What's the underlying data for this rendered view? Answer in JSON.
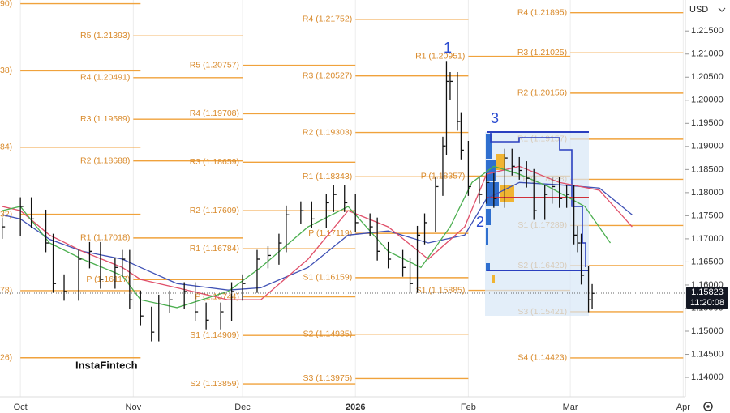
{
  "chart_data": {
    "type": "ohlc",
    "currency": "USD",
    "watermark": "InstaFintech",
    "last_price": 1.15823,
    "countdown": "11:20:08",
    "annotations": [
      "1",
      "2",
      "3"
    ],
    "grid": true,
    "xlim": [
      -5.6,
      182.6
    ],
    "xticks": [
      {
        "value": 0,
        "label": "Oct"
      },
      {
        "value": 31,
        "label": "Nov"
      },
      {
        "value": 61,
        "label": "Dec"
      },
      {
        "value": 92,
        "label": "2026"
      },
      {
        "value": 123,
        "label": "Feb"
      },
      {
        "value": 151,
        "label": "Mar"
      },
      {
        "value": 182,
        "label": "Apr"
      }
    ],
    "ylim": [
      1.1358,
      1.2217
    ],
    "yticks": [
      {
        "value": 1.215,
        "label": "1.21500"
      },
      {
        "value": 1.21,
        "label": "1.21000"
      },
      {
        "value": 1.205,
        "label": "1.20500"
      },
      {
        "value": 1.2,
        "label": "1.20000"
      },
      {
        "value": 1.195,
        "label": "1.19500"
      },
      {
        "value": 1.19,
        "label": "1.19000"
      },
      {
        "value": 1.185,
        "label": "1.18500"
      },
      {
        "value": 1.18,
        "label": "1.18000"
      },
      {
        "value": 1.175,
        "label": "1.17500"
      },
      {
        "value": 1.17,
        "label": "1.17000"
      },
      {
        "value": 1.165,
        "label": "1.16500"
      },
      {
        "value": 1.16,
        "label": "1.16000"
      },
      {
        "value": 1.155,
        "label": "1.15500"
      },
      {
        "value": 1.15,
        "label": "1.15000"
      },
      {
        "value": 1.145,
        "label": "1.14500"
      },
      {
        "value": 1.14,
        "label": "1.14000"
      }
    ],
    "x": [
      -5,
      0,
      3,
      7,
      9,
      12,
      16,
      19,
      22,
      26,
      28,
      30,
      33,
      36,
      38,
      41,
      45,
      48,
      51,
      55,
      58,
      61,
      65,
      68,
      71,
      73,
      77,
      80,
      84,
      86,
      89,
      92,
      96,
      98,
      101,
      105,
      107,
      109,
      111,
      114,
      116,
      117,
      118,
      120,
      121,
      123,
      126,
      128,
      130,
      133,
      135,
      137,
      139,
      141,
      144,
      146,
      148,
      150,
      152,
      153,
      154,
      156,
      157
    ],
    "high": [
      1.1746,
      1.179,
      1.179,
      1.1763,
      1.1711,
      1.1623,
      1.1676,
      1.1693,
      1.1693,
      1.1658,
      1.1676,
      1.1676,
      1.1588,
      1.1553,
      1.1579,
      1.1588,
      1.1606,
      1.1606,
      1.1562,
      1.1562,
      1.1606,
      1.1623,
      1.1676,
      1.1684,
      1.1711,
      1.1772,
      1.1781,
      1.1781,
      1.1798,
      1.1816,
      1.1816,
      1.1798,
      1.1755,
      1.1746,
      1.1693,
      1.1676,
      1.1658,
      1.1728,
      1.1755,
      1.1833,
      1.1921,
      1.2085,
      1.2061,
      1.2061,
      1.1974,
      1.1912,
      1.1833,
      1.1842,
      1.1842,
      1.1895,
      1.1895,
      1.1877,
      1.1868,
      1.1851,
      1.1816,
      1.1833,
      1.1833,
      1.1816,
      1.1816,
      1.1728,
      1.1711,
      1.1641,
      1.1602
    ],
    "low": [
      1.17,
      1.1706,
      1.1723,
      1.1671,
      1.1583,
      1.1566,
      1.1566,
      1.1636,
      1.1592,
      1.1592,
      1.1618,
      1.1548,
      1.1513,
      1.1478,
      1.1478,
      1.1539,
      1.1548,
      1.1522,
      1.1504,
      1.1504,
      1.1522,
      1.1566,
      1.1583,
      1.1636,
      1.1644,
      1.1671,
      1.1732,
      1.1723,
      1.1723,
      1.1758,
      1.1758,
      1.1715,
      1.1706,
      1.1653,
      1.1636,
      1.1618,
      1.1583,
      1.1583,
      1.1688,
      1.1715,
      1.1793,
      1.1881,
      1.2001,
      1.1934,
      1.1872,
      1.1793,
      1.1776,
      1.1776,
      1.1767,
      1.1767,
      1.1837,
      1.1828,
      1.1811,
      1.1741,
      1.1741,
      1.1776,
      1.1767,
      1.1767,
      1.1688,
      1.1671,
      1.1601,
      1.1541,
      1.1548
    ],
    "close": [
      1.1726,
      1.177,
      1.1743,
      1.1691,
      1.1603,
      1.1586,
      1.1656,
      1.1673,
      1.1612,
      1.1638,
      1.1656,
      1.1568,
      1.1533,
      1.1498,
      1.1559,
      1.1568,
      1.1586,
      1.1542,
      1.1524,
      1.1542,
      1.1586,
      1.1603,
      1.1656,
      1.1664,
      1.1691,
      1.1752,
      1.1761,
      1.1743,
      1.1778,
      1.1796,
      1.1778,
      1.1735,
      1.1726,
      1.1673,
      1.1656,
      1.1638,
      1.1603,
      1.1708,
      1.1735,
      1.1813,
      1.1901,
      1.2041,
      1.2041,
      1.1954,
      1.1892,
      1.1813,
      1.1796,
      1.1822,
      1.1787,
      1.1875,
      1.1857,
      1.1848,
      1.1831,
      1.1761,
      1.1796,
      1.1813,
      1.1787,
      1.1796,
      1.1708,
      1.1691,
      1.1621,
      1.1568,
      1.1582
    ],
    "series": [
      {
        "color": "#3f51b5",
        "x": [
          -5,
          0,
          8,
          17,
          28,
          33,
          43,
          57,
          66,
          79,
          90,
          101,
          112,
          122,
          128,
          137,
          148,
          159,
          168
        ],
        "values": [
          1.1752,
          1.1743,
          1.1699,
          1.1673,
          1.1656,
          1.1638,
          1.1603,
          1.1589,
          1.1594,
          1.1638,
          1.1708,
          1.1717,
          1.1691,
          1.1708,
          1.1787,
          1.1822,
          1.1817,
          1.181,
          1.1752
        ]
      },
      {
        "color": "#e0506a",
        "x": [
          -5,
          0,
          8,
          17,
          28,
          33,
          43,
          57,
          66,
          79,
          90,
          101,
          112,
          122,
          128,
          137,
          148,
          159,
          168
        ],
        "values": [
          1.177,
          1.1761,
          1.1708,
          1.1673,
          1.1638,
          1.1612,
          1.1594,
          1.1568,
          1.1568,
          1.1656,
          1.1761,
          1.1726,
          1.1656,
          1.1726,
          1.184,
          1.1857,
          1.1822,
          1.1805,
          1.1726
        ]
      },
      {
        "color": "#4caf50",
        "x": [
          -5,
          0,
          8,
          17,
          28,
          33,
          43,
          57,
          66,
          79,
          90,
          101,
          110,
          118,
          124,
          130,
          137,
          145,
          155,
          162
        ],
        "values": [
          1.1761,
          1.177,
          1.1691,
          1.1656,
          1.162,
          1.1568,
          1.1551,
          1.1586,
          1.1638,
          1.1726,
          1.177,
          1.1673,
          1.1638,
          1.1726,
          1.1822,
          1.1857,
          1.184,
          1.1813,
          1.177,
          1.1691
        ]
      }
    ],
    "pivots": [
      {
        "start": 0,
        "end": 33,
        "levels": [
          {
            "label": "90)",
            "value": 1.2209
          },
          {
            "label": "38)",
            "value": 1.20638
          },
          {
            "label": "84)",
            "value": 1.18984
          },
          {
            "label": "32)",
            "value": 1.17532
          },
          {
            "label": "78)",
            "value": 1.15878
          },
          {
            "label": "26)",
            "value": 1.14426
          }
        ]
      },
      {
        "start": 31,
        "end": 61,
        "levels": [
          {
            "label": "R5 (1.21393)",
            "value": 1.21393
          },
          {
            "label": "R4 (1.20491)",
            "value": 1.20491
          },
          {
            "label": "R3 (1.19589)",
            "value": 1.19589
          },
          {
            "label": "R2 (1.18688)",
            "value": 1.18688
          },
          {
            "label": "R1 (1.17018)",
            "value": 1.17018
          },
          {
            "label": "P (1.16117)",
            "value": 1.16117
          }
        ]
      },
      {
        "start": 61,
        "end": 92,
        "levels": [
          {
            "label": "R5 (1.20757)",
            "value": 1.20757
          },
          {
            "label": "R4 (1.19708)",
            "value": 1.19708
          },
          {
            "label": "R3 (1.18659)",
            "value": 1.18659
          },
          {
            "label": "R2 (1.17609)",
            "value": 1.17609
          },
          {
            "label": "R1 (1.16784)",
            "value": 1.16784
          },
          {
            "label": "P (1.15744)",
            "value": 1.15744
          },
          {
            "label": "S1 (1.14909)",
            "value": 1.14909
          },
          {
            "label": "S2 (1.13859)",
            "value": 1.13859
          }
        ]
      },
      {
        "start": 92,
        "end": 123,
        "levels": [
          {
            "label": "R4 (1.21752)",
            "value": 1.21752
          },
          {
            "label": "R3 (1.20527)",
            "value": 1.20527
          },
          {
            "label": "R2 (1.19303)",
            "value": 1.19303
          },
          {
            "label": "R1 (1.18343)",
            "value": 1.18343
          },
          {
            "label": "P (1.17119)",
            "value": 1.17119
          },
          {
            "label": "S1 (1.16159)",
            "value": 1.16159
          },
          {
            "label": "S2 (1.14935)",
            "value": 1.14935
          },
          {
            "label": "S3 (1.13975)",
            "value": 1.13975
          }
        ]
      },
      {
        "start": 123,
        "end": 151,
        "levels": [
          {
            "label": "R1 (1.20951)",
            "value": 1.20951
          },
          {
            "label": "P (1.18357)",
            "value": 1.18357
          },
          {
            "label": "S1 (1.15885)",
            "value": 1.15885
          }
        ]
      },
      {
        "start": 151,
        "end": 182,
        "levels": [
          {
            "label": "R4 (1.21895)",
            "value": 1.21895
          },
          {
            "label": "R3 (1.21025)",
            "value": 1.21025
          },
          {
            "label": "R2 (1.20156)",
            "value": 1.20156
          },
          {
            "label": "R1 (1.19157)",
            "value": 1.19157
          },
          {
            "label": "P (1.18288)",
            "value": 1.18288
          },
          {
            "label": "S1 (1.17289)",
            "value": 1.17289
          },
          {
            "label": "S2 (1.16420)",
            "value": 1.1642
          },
          {
            "label": "S3 (1.15421)",
            "value": 1.15421
          },
          {
            "label": "S4 (1.14423)",
            "value": 1.14423
          }
        ]
      }
    ]
  }
}
